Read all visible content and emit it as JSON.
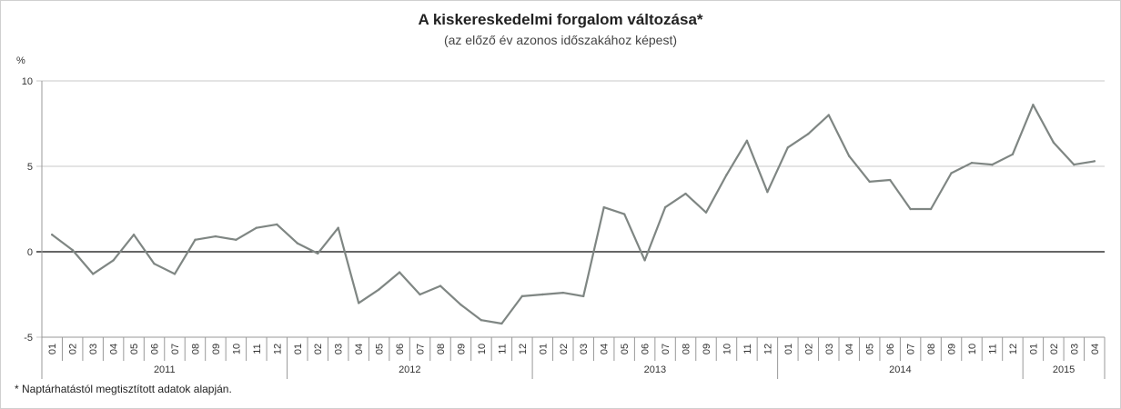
{
  "chart_data": {
    "type": "line",
    "title": "A kiskereskedelmi forgalom változása*",
    "subtitle": "(az előző év azonos időszakához képest)",
    "ylabel": "%",
    "ylim": [
      -5,
      10
    ],
    "yticks": [
      10,
      5,
      0,
      -5
    ],
    "grid": true,
    "footnote": "* Naptárhatástól megtisztított adatok alapján.",
    "years": [
      {
        "label": "2011",
        "months": 12
      },
      {
        "label": "2012",
        "months": 12
      },
      {
        "label": "2013",
        "months": 12
      },
      {
        "label": "2014",
        "months": 12
      },
      {
        "label": "2015",
        "months": 4
      }
    ],
    "categories": [
      "01",
      "02",
      "03",
      "04",
      "05",
      "06",
      "07",
      "08",
      "09",
      "10",
      "11",
      "12",
      "01",
      "02",
      "03",
      "04",
      "05",
      "06",
      "07",
      "08",
      "09",
      "10",
      "11",
      "12",
      "01",
      "02",
      "03",
      "04",
      "05",
      "06",
      "07",
      "08",
      "09",
      "10",
      "11",
      "12",
      "01",
      "02",
      "03",
      "04",
      "05",
      "06",
      "07",
      "08",
      "09",
      "10",
      "11",
      "12",
      "01",
      "02",
      "03",
      "04"
    ],
    "series": [
      {
        "values": [
          1.0,
          0.1,
          -1.3,
          -0.5,
          1.0,
          -0.7,
          -1.3,
          0.7,
          0.9,
          0.7,
          1.4,
          1.6,
          0.5,
          -0.1,
          1.4,
          -3.0,
          -2.2,
          -1.2,
          -2.5,
          -2.0,
          -3.1,
          -4.0,
          -4.2,
          -2.6,
          -2.5,
          -2.4,
          -2.6,
          2.6,
          2.2,
          -0.5,
          2.6,
          3.4,
          2.3,
          4.5,
          6.5,
          3.5,
          6.1,
          6.9,
          8.0,
          5.6,
          4.1,
          4.2,
          2.5,
          2.5,
          4.6,
          5.2,
          5.1,
          5.7,
          8.6,
          6.4,
          5.1,
          5.3
        ],
        "color": "#7f8683"
      }
    ]
  }
}
